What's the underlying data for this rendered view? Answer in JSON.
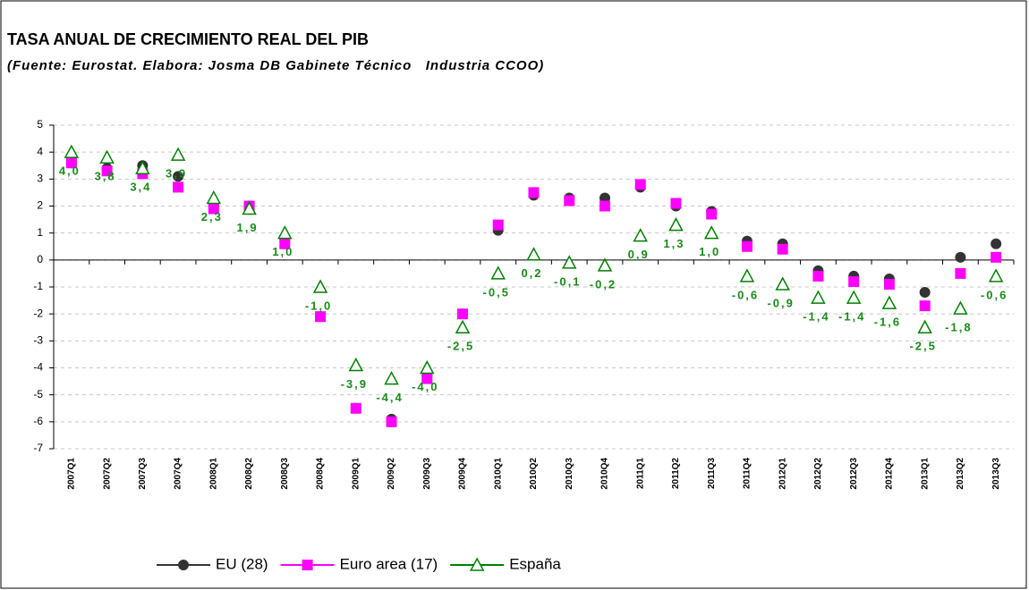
{
  "chart_data": {
    "type": "line",
    "title": "TASA ANUAL DE CRECIMIENTO REAL DEL PIB",
    "subtitle": "(Fuente: Eurostat. Elabora: Josma DB Gabinete Técnico   Industria CCOO)",
    "categories": [
      "2007Q1",
      "2007Q2",
      "2007Q3",
      "2007Q4",
      "2008Q1",
      "2008Q2",
      "2008Q3",
      "2008Q4",
      "2009Q1",
      "2009Q2",
      "2009Q3",
      "2009Q4",
      "2010Q1",
      "2010Q2",
      "2010Q3",
      "2010Q4",
      "2011Q1",
      "2011Q2",
      "2011Q3",
      "2011Q4",
      "2012Q1",
      "2012Q2",
      "2012Q3",
      "2012Q4",
      "2013Q1",
      "2013Q2",
      "2013Q3"
    ],
    "series": [
      {
        "name": "EU (28)",
        "color": "#333333",
        "marker": "circle",
        "values": [
          3.6,
          3.4,
          3.5,
          3.1,
          2.0,
          2.0,
          0.7,
          -2.1,
          -5.5,
          -5.9,
          -4.3,
          -2.0,
          1.1,
          2.4,
          2.3,
          2.3,
          2.7,
          2.0,
          1.8,
          0.7,
          0.6,
          -0.4,
          -0.6,
          -0.7,
          -1.2,
          0.1,
          0.6
        ]
      },
      {
        "name": "Euro area (17)",
        "color": "#ff00ff",
        "marker": "square",
        "values": [
          3.6,
          3.3,
          3.2,
          2.7,
          1.9,
          2.0,
          0.6,
          -2.1,
          -5.5,
          -6.0,
          -4.4,
          -2.0,
          1.3,
          2.5,
          2.2,
          2.0,
          2.8,
          2.1,
          1.7,
          0.5,
          0.4,
          -0.6,
          -0.8,
          -0.9,
          -1.7,
          -0.5,
          0.1
        ]
      },
      {
        "name": "España",
        "color": "#008000",
        "marker": "triangle",
        "values": [
          4.0,
          3.8,
          3.4,
          3.9,
          2.3,
          1.9,
          1.0,
          -1.0,
          -3.9,
          -4.4,
          -4.0,
          -2.5,
          -0.5,
          0.2,
          -0.1,
          -0.2,
          0.9,
          1.3,
          1.0,
          -0.6,
          -0.9,
          -1.4,
          -1.4,
          -1.6,
          -2.5,
          -1.8,
          -0.6
        ],
        "value_labels": [
          "4,0",
          "3,8",
          "3,4",
          "3,9",
          "2,3",
          "1,9",
          "1,0",
          "-1,0",
          "-3,9",
          "-4,4",
          "-4,0",
          "-2,5",
          "-0,5",
          "0,2",
          "-0,1",
          "-0,2",
          "0,9",
          "1,3",
          "1,0",
          "-0,6",
          "-0,9",
          "-1,4",
          "-1,4",
          "-1,6",
          "-2,5",
          "-1,8",
          "-0,6"
        ]
      }
    ],
    "ylim": [
      -7,
      5
    ],
    "yticks": [
      5,
      4,
      3,
      2,
      1,
      0,
      -1,
      -2,
      -3,
      -4,
      -5,
      -6,
      -7
    ],
    "grid": true,
    "legend": "bottom"
  }
}
